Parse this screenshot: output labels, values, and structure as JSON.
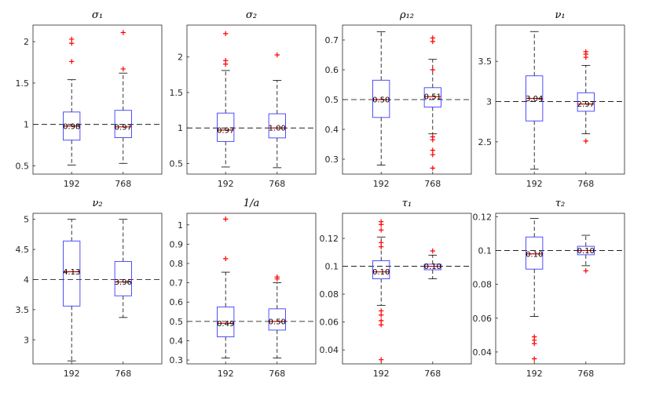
{
  "chart_data": [
    {
      "type": "box",
      "title": "σ₁",
      "categories": [
        "192",
        "768"
      ],
      "ylim": [
        0.4,
        2.2
      ],
      "yticks": [
        0.5,
        1,
        1.5,
        2
      ],
      "yticklabels": [
        "0.5",
        "1",
        "1.5",
        "2"
      ],
      "reference": 1,
      "boxes": [
        {
          "whisker_low": 0.51,
          "q1": 0.81,
          "median": 0.98,
          "q3": 1.15,
          "whisker_high": 1.54,
          "outliers": [
            2.03,
            1.98,
            1.76
          ],
          "median_label": "0.98"
        },
        {
          "whisker_low": 0.53,
          "q1": 0.84,
          "median": 0.97,
          "q3": 1.17,
          "whisker_high": 1.62,
          "outliers": [
            2.11,
            1.67
          ],
          "median_label": "0.97"
        }
      ]
    },
    {
      "type": "box",
      "title": "σ₂",
      "categories": [
        "192",
        "768"
      ],
      "ylim": [
        0.35,
        2.45
      ],
      "yticks": [
        0.5,
        1,
        1.5,
        2
      ],
      "yticklabels": [
        "0.5",
        "1",
        "1.5",
        "2"
      ],
      "reference": 1,
      "boxes": [
        {
          "whisker_low": 0.45,
          "q1": 0.81,
          "median": 0.97,
          "q3": 1.21,
          "whisker_high": 1.81,
          "outliers": [
            2.33,
            1.95,
            1.9
          ],
          "median_label": "0.97"
        },
        {
          "whisker_low": 0.44,
          "q1": 0.86,
          "median": 1.0,
          "q3": 1.2,
          "whisker_high": 1.67,
          "outliers": [
            2.03
          ],
          "median_label": "1.00"
        }
      ]
    },
    {
      "type": "box",
      "title": "ρ₁₂",
      "categories": [
        "192",
        "768"
      ],
      "ylim": [
        0.25,
        0.75
      ],
      "yticks": [
        0.3,
        0.4,
        0.5,
        0.6,
        0.7
      ],
      "yticklabels": [
        "0.3",
        "0.4",
        "0.5",
        "0.6",
        "0.7"
      ],
      "reference": 0.5,
      "boxes": [
        {
          "whisker_low": 0.28,
          "q1": 0.44,
          "median": 0.5,
          "q3": 0.565,
          "whisker_high": 0.728,
          "outliers": [],
          "median_label": "0.50"
        },
        {
          "whisker_low": 0.385,
          "q1": 0.475,
          "median": 0.51,
          "q3": 0.54,
          "whisker_high": 0.635,
          "outliers": [
            0.707,
            0.695,
            0.6,
            0.375,
            0.365,
            0.33,
            0.315,
            0.27
          ],
          "median_label": "0.51"
        }
      ]
    },
    {
      "type": "box",
      "title": "ν₁",
      "categories": [
        "192",
        "768"
      ],
      "ylim": [
        2.1,
        3.95
      ],
      "yticks": [
        2.5,
        3,
        3.5
      ],
      "yticklabels": [
        "2.5",
        "3",
        "3.5"
      ],
      "reference": 3,
      "boxes": [
        {
          "whisker_low": 2.16,
          "q1": 2.76,
          "median": 3.04,
          "q3": 3.32,
          "whisker_high": 3.87,
          "outliers": [],
          "median_label": "3.04"
        },
        {
          "whisker_low": 2.6,
          "q1": 2.88,
          "median": 2.97,
          "q3": 3.11,
          "whisker_high": 3.45,
          "outliers": [
            3.62,
            3.59,
            3.55,
            2.51
          ],
          "median_label": "2.97"
        }
      ]
    },
    {
      "type": "box",
      "title": "ν₂",
      "categories": [
        "192",
        "768"
      ],
      "ylim": [
        2.6,
        5.1
      ],
      "yticks": [
        3,
        3.5,
        4,
        4.5,
        5
      ],
      "yticklabels": [
        "3",
        "3.5",
        "4",
        "4.5",
        "5"
      ],
      "reference": 4,
      "boxes": [
        {
          "whisker_low": 2.65,
          "q1": 3.56,
          "median": 4.13,
          "q3": 4.64,
          "whisker_high": 5.0,
          "outliers": [],
          "median_label": "4.13"
        },
        {
          "whisker_low": 3.37,
          "q1": 3.73,
          "median": 3.96,
          "q3": 4.3,
          "whisker_high": 5.0,
          "outliers": [],
          "median_label": "3.96"
        }
      ]
    },
    {
      "type": "box",
      "title": "1/a",
      "categories": [
        "192",
        "768"
      ],
      "ylim": [
        0.28,
        1.06
      ],
      "yticks": [
        0.3,
        0.4,
        0.5,
        0.6,
        0.7,
        0.8,
        0.9,
        1
      ],
      "yticklabels": [
        "0.3",
        "0.4",
        "0.5",
        "0.6",
        "0.7",
        "0.8",
        "0.9",
        "1"
      ],
      "reference": 0.5,
      "boxes": [
        {
          "whisker_low": 0.31,
          "q1": 0.42,
          "median": 0.49,
          "q3": 0.575,
          "whisker_high": 0.755,
          "outliers": [
            1.03,
            0.825
          ],
          "median_label": "0.49"
        },
        {
          "whisker_low": 0.31,
          "q1": 0.455,
          "median": 0.5,
          "q3": 0.565,
          "whisker_high": 0.7,
          "outliers": [
            0.73,
            0.72
          ],
          "median_label": "0.50"
        }
      ]
    },
    {
      "type": "box",
      "title": "τ₁",
      "categories": [
        "192",
        "768"
      ],
      "ylim": [
        0.03,
        0.138
      ],
      "yticks": [
        0.04,
        0.06,
        0.08,
        0.1,
        0.12
      ],
      "yticklabels": [
        "0.04",
        "0.06",
        "0.08",
        "0.1",
        "0.12"
      ],
      "reference": 0.1,
      "boxes": [
        {
          "whisker_low": 0.072,
          "q1": 0.091,
          "median": 0.096,
          "q3": 0.104,
          "whisker_high": 0.121,
          "outliers": [
            0.132,
            0.13,
            0.126,
            0.117,
            0.114,
            0.068,
            0.065,
            0.061,
            0.058,
            0.033
          ],
          "median_label": "0.10"
        },
        {
          "whisker_low": 0.091,
          "q1": 0.0975,
          "median": 0.1,
          "q3": 0.1015,
          "whisker_high": 0.108,
          "outliers": [
            0.111
          ],
          "median_label": "0.10"
        }
      ]
    },
    {
      "type": "box",
      "title": "τ₂",
      "categories": [
        "192",
        "768"
      ],
      "ylim": [
        0.033,
        0.122
      ],
      "yticks": [
        0.04,
        0.06,
        0.08,
        0.1,
        0.12
      ],
      "yticklabels": [
        "0.04",
        "0.06",
        "0.08",
        "0.1",
        "0.12"
      ],
      "reference": 0.1,
      "boxes": [
        {
          "whisker_low": 0.061,
          "q1": 0.089,
          "median": 0.098,
          "q3": 0.108,
          "whisker_high": 0.119,
          "outliers": [
            0.049,
            0.047,
            0.045,
            0.036
          ],
          "median_label": "0.10"
        },
        {
          "whisker_low": 0.091,
          "q1": 0.0975,
          "median": 0.1,
          "q3": 0.1025,
          "whisker_high": 0.109,
          "outliers": [
            0.088
          ],
          "median_label": "0.10"
        }
      ]
    }
  ],
  "colors": {
    "box": "#3b3bff",
    "median": "#d40000",
    "outlier": "#ff0000",
    "whisker": "#000000",
    "reference": "#000000",
    "axis": "#262626"
  }
}
